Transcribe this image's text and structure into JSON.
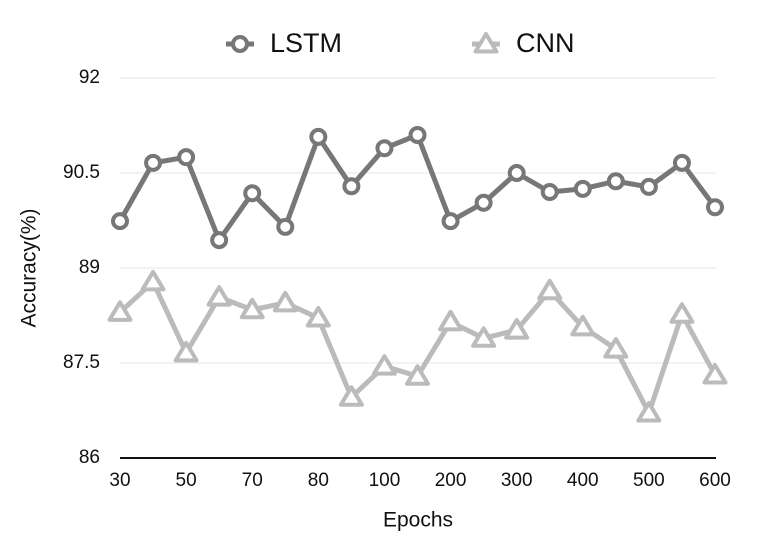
{
  "chart_data": {
    "type": "line",
    "xlabel": "Epochs",
    "ylabel": "Accuracy(%)",
    "categories": [
      "30",
      null,
      "50",
      null,
      "70",
      null,
      "80",
      null,
      "100",
      null,
      "200",
      null,
      "300",
      null,
      "400",
      null,
      "500",
      null,
      "600"
    ],
    "series": [
      {
        "name": "LSTM",
        "color": "#777777",
        "marker": "circle",
        "values": [
          89.74,
          90.66,
          90.75,
          89.44,
          90.18,
          89.65,
          91.07,
          90.29,
          90.89,
          91.1,
          89.74,
          90.03,
          90.5,
          90.2,
          90.25,
          90.37,
          90.28,
          90.66,
          89.96
        ]
      },
      {
        "name": "CNN",
        "color": "#bbbbbb",
        "marker": "triangle",
        "values": [
          88.3,
          88.78,
          87.66,
          88.54,
          88.34,
          88.45,
          88.21,
          86.96,
          87.45,
          87.29,
          88.15,
          87.89,
          88.02,
          88.64,
          88.07,
          87.72,
          86.71,
          88.27,
          87.31
        ]
      }
    ],
    "ylim": [
      86,
      92
    ],
    "yticks": [
      86,
      87.5,
      89,
      90.5,
      92
    ],
    "grid": true,
    "legend": "top"
  }
}
